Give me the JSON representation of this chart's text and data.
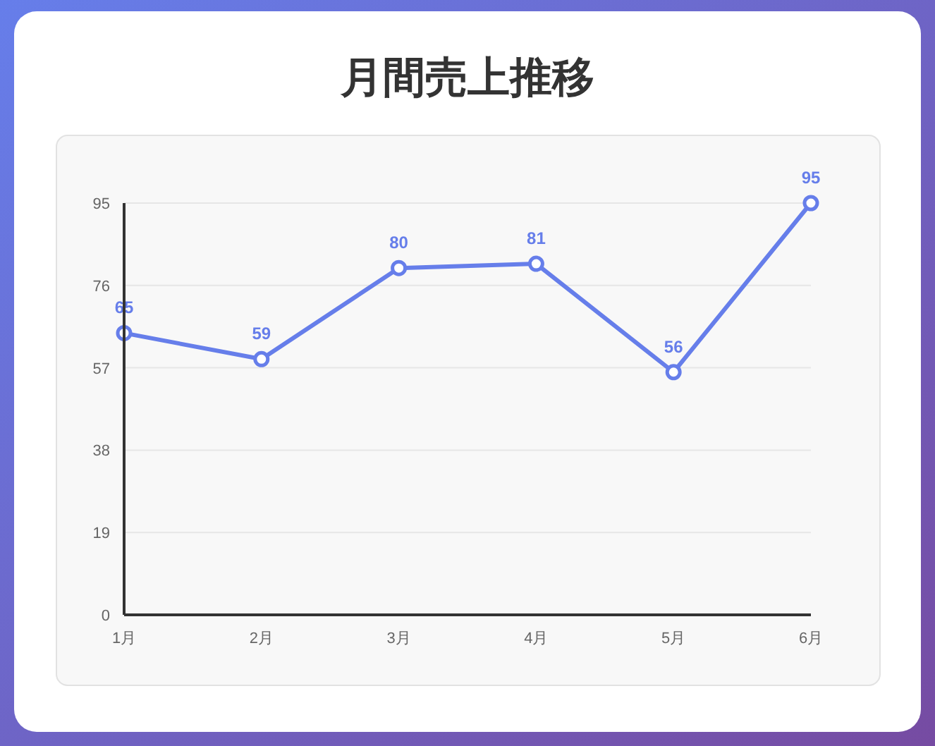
{
  "chart_data": {
    "type": "line",
    "title": "月間売上推移",
    "categories": [
      "1月",
      "2月",
      "3月",
      "4月",
      "5月",
      "6月"
    ],
    "series": [
      {
        "color": "#667eea",
        "values": [
          65,
          59,
          80,
          81,
          56,
          95
        ]
      }
    ],
    "ylim": [
      0,
      95
    ],
    "yticks": [
      0,
      19,
      38,
      57,
      76,
      95
    ],
    "grid": "y",
    "data_labels": true,
    "marker": "circle",
    "line_style": "solid"
  }
}
